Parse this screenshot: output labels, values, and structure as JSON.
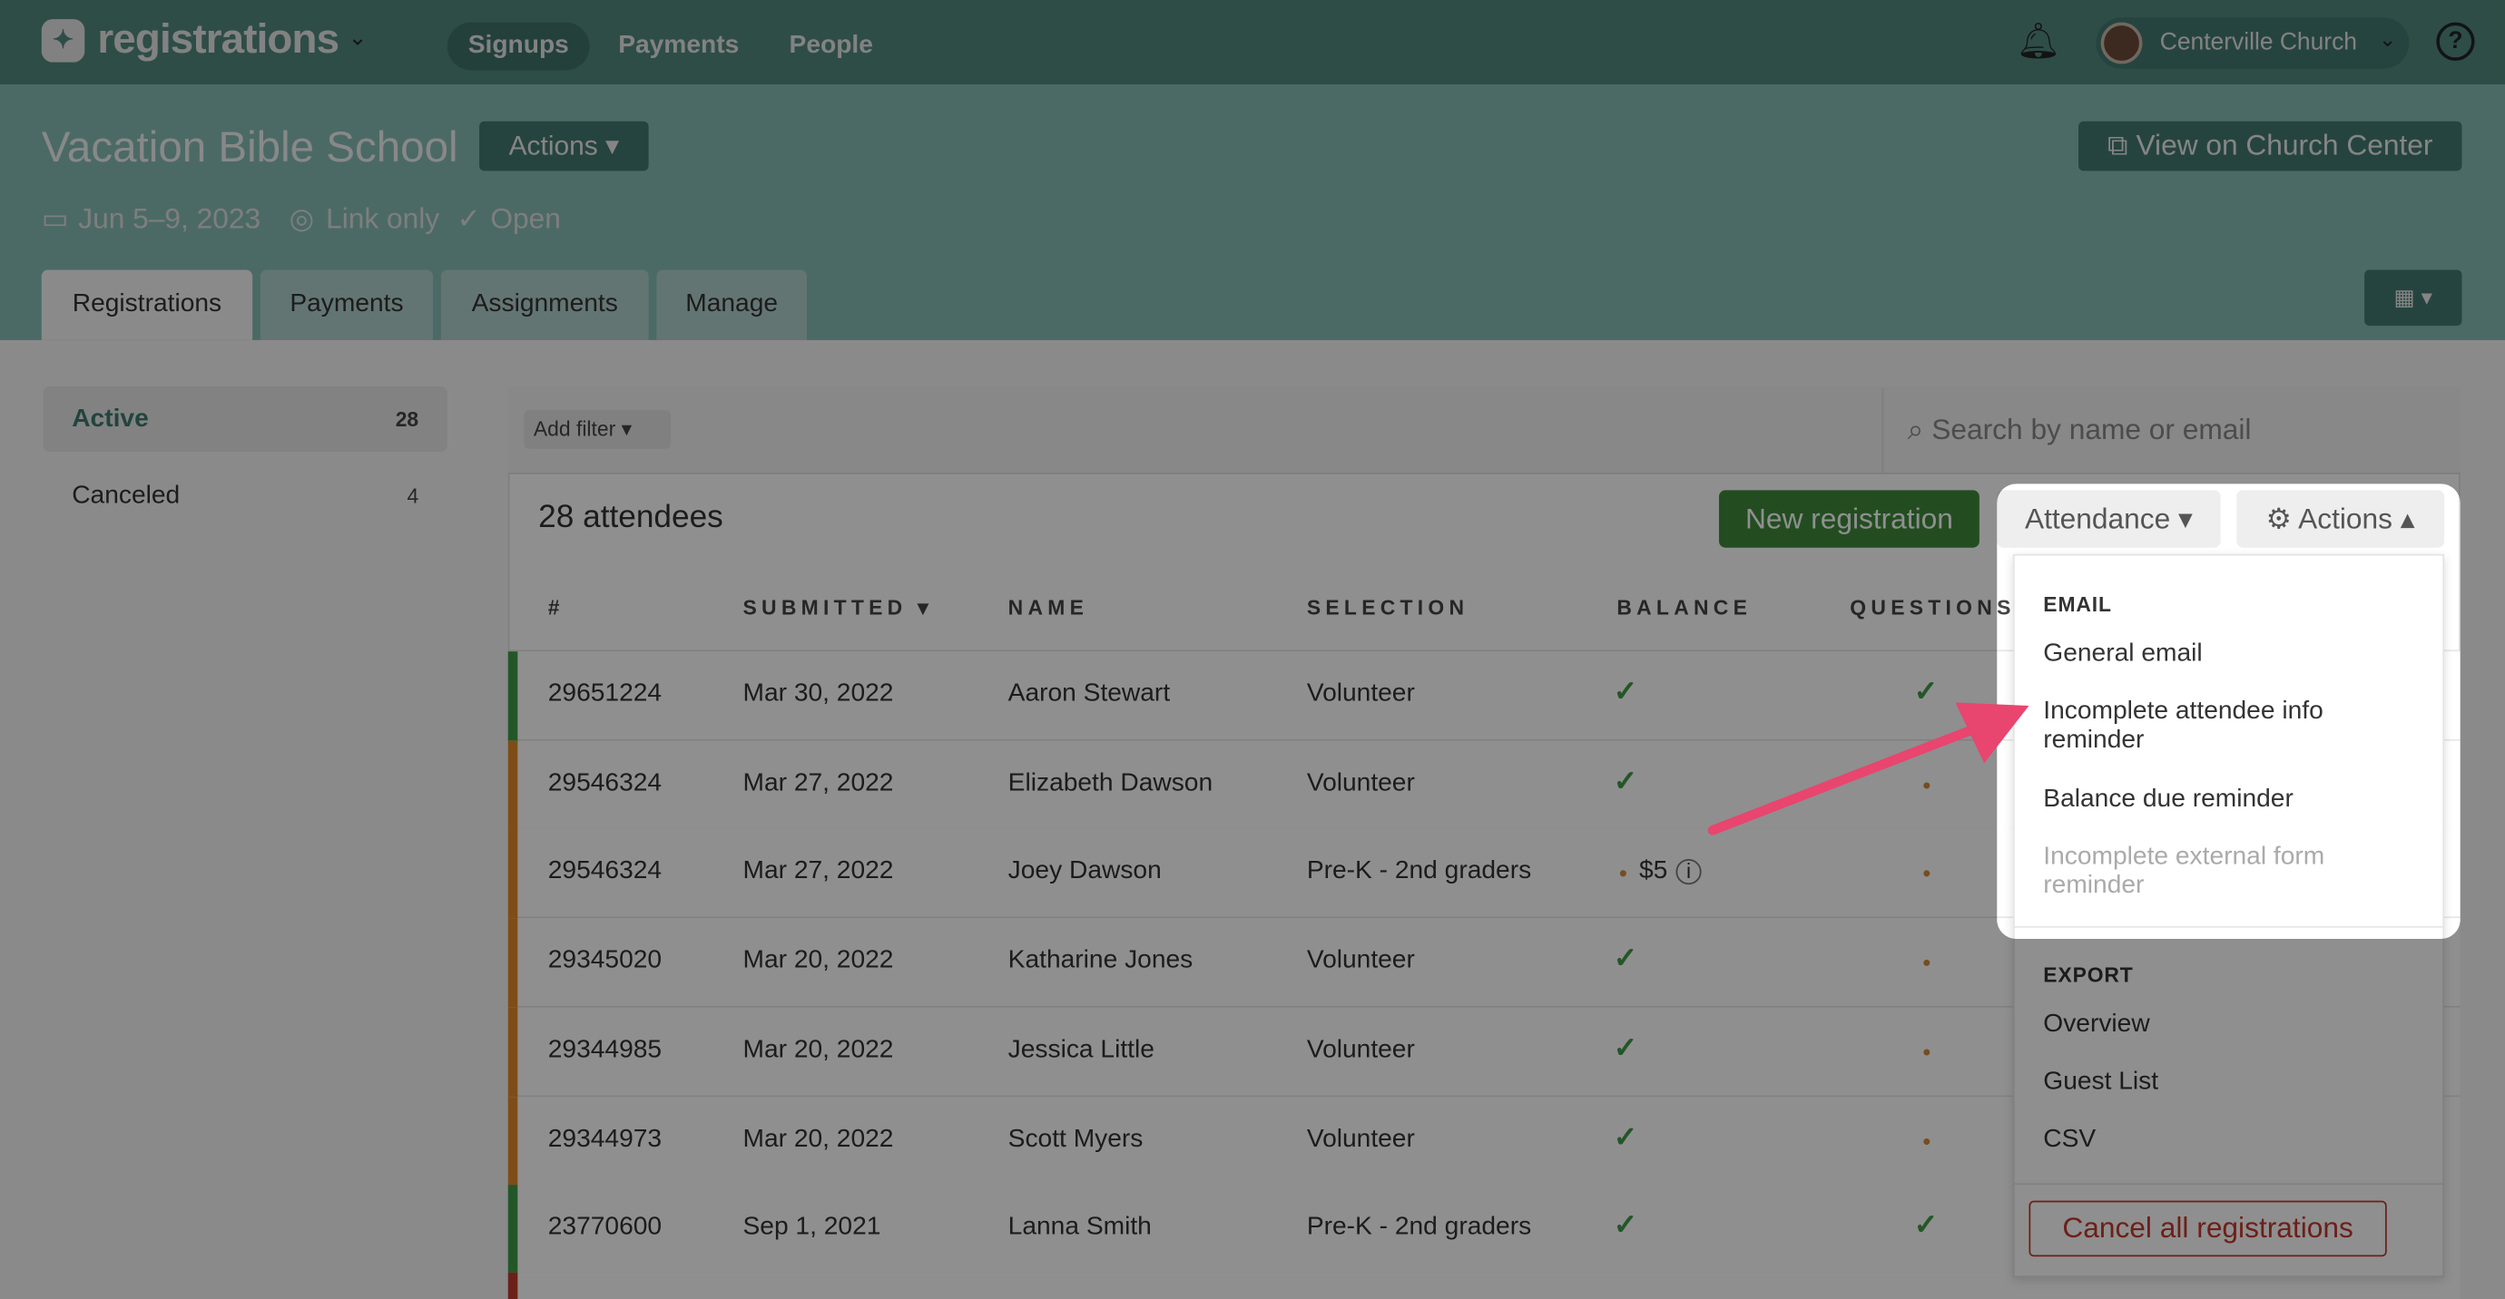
{
  "nav": {
    "brand": "registrations",
    "items": [
      {
        "label": "Signups",
        "active": true
      },
      {
        "label": "Payments"
      },
      {
        "label": "People"
      }
    ],
    "account": "Centerville Church",
    "help": "?"
  },
  "event": {
    "title": "Vacation Bible School",
    "actions_label": "Actions ▾",
    "date": "Jun 5–9, 2023",
    "visibility": "Link only",
    "status": "Open",
    "view_label": "View on Church Center"
  },
  "tabs": [
    {
      "label": "Registrations",
      "active": true
    },
    {
      "label": "Payments"
    },
    {
      "label": "Assignments"
    },
    {
      "label": "Manage"
    }
  ],
  "sidebar": [
    {
      "label": "Active",
      "count": "28",
      "active": true
    },
    {
      "label": "Canceled",
      "count": "4"
    }
  ],
  "filter": {
    "add_filter": "Add filter ▾",
    "search_placeholder": "Search by name or email"
  },
  "list": {
    "count_label": "28 attendees",
    "new_registration": "New registration",
    "attendance": "Attendance ▾",
    "actions": "Actions ▴"
  },
  "columns": [
    "#",
    "SUBMITTED ▾",
    "NAME",
    "SELECTION",
    "BALANCE",
    "QUESTIONS"
  ],
  "rows": [
    {
      "id": "29651224",
      "submitted": "Mar 30, 2022",
      "name": "Aaron Stewart",
      "selection": "Volunteer",
      "balance": "paid",
      "questions": "complete",
      "status": "green"
    },
    {
      "id": "29546324",
      "submitted": "Mar 27, 2022",
      "name": "Elizabeth Dawson",
      "selection": "Volunteer",
      "balance": "paid",
      "questions": "incomplete",
      "status": "orange"
    },
    {
      "id": "29546324",
      "submitted": "Mar 27, 2022",
      "name": "Joey Dawson",
      "selection": "Pre-K - 2nd graders",
      "balance": "$5",
      "questions": "incomplete",
      "status": "orange"
    },
    {
      "id": "29345020",
      "submitted": "Mar 20, 2022",
      "name": "Katharine Jones",
      "selection": "Volunteer",
      "balance": "paid",
      "questions": "incomplete",
      "status": "orange"
    },
    {
      "id": "29344985",
      "submitted": "Mar 20, 2022",
      "name": "Jessica Little",
      "selection": "Volunteer",
      "balance": "paid",
      "questions": "incomplete",
      "status": "orange"
    },
    {
      "id": "29344973",
      "submitted": "Mar 20, 2022",
      "name": "Scott Myers",
      "selection": "Volunteer",
      "balance": "paid",
      "questions": "incomplete",
      "status": "orange"
    },
    {
      "id": "23770600",
      "submitted": "Sep 1, 2021",
      "name": "Lanna Smith",
      "selection": "Pre-K - 2nd graders",
      "balance": "paid",
      "questions": "complete",
      "status": "green"
    }
  ],
  "menu": {
    "email_header": "EMAIL",
    "email_items": [
      {
        "label": "General email"
      },
      {
        "label": "Incomplete attendee info reminder"
      },
      {
        "label": "Balance due reminder"
      },
      {
        "label": "Incomplete external form reminder",
        "disabled": true
      }
    ],
    "export_header": "EXPORT",
    "export_items": [
      {
        "label": "Overview"
      },
      {
        "label": "Guest List"
      },
      {
        "label": "CSV"
      }
    ],
    "cancel_all": "Cancel all registrations"
  },
  "colors": {
    "nav": "#52897f",
    "subheader": "#86bdb6",
    "primary": "#3f8a3c",
    "danger": "#c0392b",
    "arrow": "#e8456f",
    "green": "#3f9b47",
    "orange": "#e08a2a"
  }
}
